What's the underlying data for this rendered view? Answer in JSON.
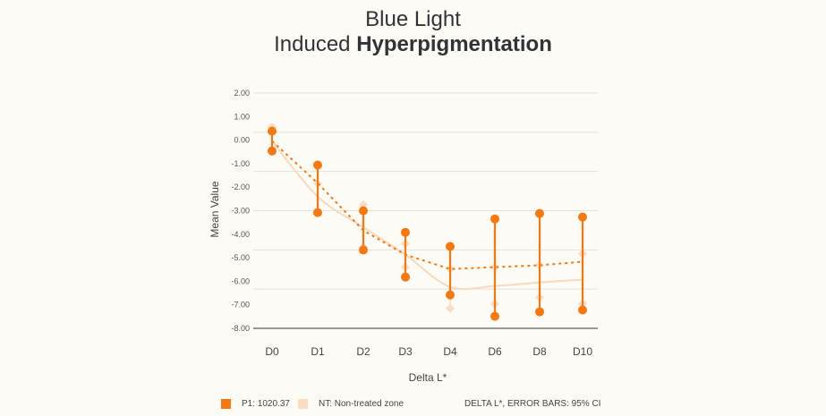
{
  "chart_data": {
    "type": "line",
    "title_line1": "Blue Light",
    "title_line2_regular": "Induced ",
    "title_line2_bold": "Hyperpigmentation",
    "xlabel": "Delta L*",
    "ylabel": "Mean Value",
    "categories": [
      "D0",
      "D1",
      "D2",
      "D3",
      "D4",
      "D6",
      "D8",
      "D10"
    ],
    "yticks": [
      "2.00",
      "1.00",
      "0.00",
      "-1.00",
      "-2.00",
      "-3.00",
      "-4.00",
      "-5.00",
      "-6.00",
      "-7.00",
      "-8.00"
    ],
    "ylim": [
      -8,
      2
    ],
    "grid": true,
    "series": [
      {
        "name": "P1: 1020.37",
        "color": "#f7780f",
        "style": "dashed-with-error-bars",
        "values": [
          -0.04,
          -1.83,
          -3.84,
          -4.87,
          -5.48,
          -5.4,
          -5.32,
          -5.17
        ],
        "ci_upper": [
          0.38,
          -1.06,
          -3.0,
          -3.92,
          -4.52,
          -3.35,
          -3.12,
          -3.27
        ],
        "ci_lower": [
          -0.46,
          -3.08,
          -4.67,
          -5.82,
          -6.58,
          -7.49,
          -7.3,
          -7.22
        ]
      },
      {
        "name": "NT: Non-treated zone",
        "color": "#f9dcc0",
        "style": "smooth-solid-with-diamond-error-bars",
        "values": [
          -0.04,
          -2.4,
          -3.7,
          -4.87,
          -6.24,
          -6.2,
          -6.05,
          -5.93
        ],
        "ci_upper": [
          0.55,
          -1.85,
          -2.75,
          -4.4,
          -5.48,
          -5.4,
          -5.32,
          -4.83
        ],
        "ci_lower": [
          -0.5,
          -3.1,
          -4.56,
          -5.4,
          -7.15,
          -6.96,
          -6.69,
          -6.96
        ]
      }
    ],
    "legend_position": "bottom",
    "note": "DELTA L*, ERROR BARS: 95% CI"
  }
}
